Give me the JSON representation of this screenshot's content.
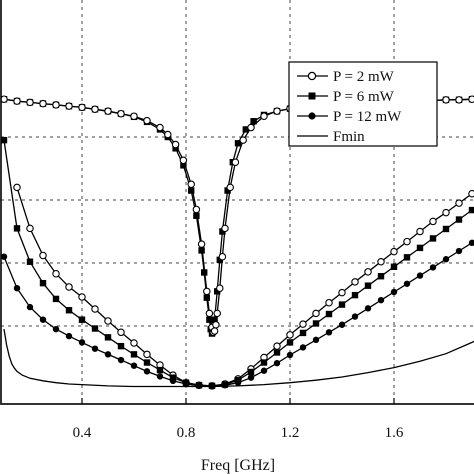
{
  "chart_data": {
    "type": "line",
    "xlabel": "Freq [GHz]",
    "ylabel": "",
    "title": "",
    "xlim": [
      0.1,
      2.0
    ],
    "ylim": [
      0,
      4.65
    ],
    "x_ticks": [
      0.4,
      0.8,
      1.2,
      1.6
    ],
    "x_tick_labels": [
      "0.4",
      "0.8",
      "1.2",
      "1.6"
    ],
    "y_grid": [
      1,
      2,
      3,
      4
    ],
    "grid": true,
    "legend_position": "top-right",
    "series": [
      {
        "name": "P = 2 mW",
        "marker": "open-circle",
        "x": [
          0.15,
          0.2,
          0.25,
          0.3,
          0.35,
          0.4,
          0.45,
          0.5,
          0.55,
          0.6,
          0.65,
          0.7,
          0.75,
          0.8,
          0.85,
          0.9,
          0.95,
          1.0,
          1.05,
          1.1,
          1.15,
          1.2,
          1.25,
          1.3,
          1.35,
          1.4,
          1.45,
          1.5,
          1.55,
          1.6,
          1.65,
          1.7,
          1.75,
          1.8,
          1.85,
          1.9,
          1.95,
          2.0
        ],
        "y": [
          3.2,
          2.55,
          2.12,
          1.83,
          1.62,
          1.46,
          1.27,
          1.08,
          0.9,
          0.73,
          0.55,
          0.38,
          0.22,
          0.1,
          0.06,
          0.05,
          0.08,
          0.16,
          0.32,
          0.5,
          0.68,
          0.86,
          1.03,
          1.2,
          1.37,
          1.53,
          1.7,
          1.86,
          2.02,
          2.18,
          2.34,
          2.5,
          2.66,
          2.8,
          2.95,
          3.1,
          3.25,
          3.4
        ]
      },
      {
        "name": "P = 6 mW",
        "marker": "filled-square",
        "x": [
          0.1,
          0.15,
          0.2,
          0.25,
          0.3,
          0.35,
          0.4,
          0.45,
          0.5,
          0.55,
          0.6,
          0.65,
          0.7,
          0.75,
          0.8,
          0.85,
          0.9,
          0.95,
          1.0,
          1.05,
          1.1,
          1.15,
          1.2,
          1.25,
          1.3,
          1.35,
          1.4,
          1.45,
          1.5,
          1.55,
          1.6,
          1.65,
          1.7,
          1.75,
          1.8,
          1.85,
          1.9,
          1.95,
          2.0
        ],
        "y": [
          3.95,
          2.55,
          2.02,
          1.68,
          1.43,
          1.25,
          1.1,
          0.96,
          0.82,
          0.68,
          0.55,
          0.42,
          0.3,
          0.18,
          0.1,
          0.06,
          0.05,
          0.07,
          0.14,
          0.27,
          0.42,
          0.58,
          0.74,
          0.89,
          1.04,
          1.19,
          1.34,
          1.49,
          1.64,
          1.79,
          1.94,
          2.09,
          2.24,
          2.39,
          2.54,
          2.69,
          2.84,
          2.99,
          3.14
        ]
      },
      {
        "name": "P = 12 mW",
        "marker": "filled-circle",
        "x": [
          0.1,
          0.15,
          0.2,
          0.25,
          0.3,
          0.35,
          0.4,
          0.45,
          0.5,
          0.55,
          0.6,
          0.65,
          0.7,
          0.75,
          0.8,
          0.85,
          0.9,
          0.95,
          1.0,
          1.05,
          1.1,
          1.15,
          1.2,
          1.25,
          1.3,
          1.35,
          1.4,
          1.45,
          1.5,
          1.55,
          1.6,
          1.65,
          1.7,
          1.75,
          1.8,
          1.85,
          1.9,
          1.95,
          2.0
        ],
        "y": [
          2.1,
          1.6,
          1.3,
          1.1,
          0.95,
          0.84,
          0.74,
          0.64,
          0.55,
          0.46,
          0.37,
          0.28,
          0.2,
          0.13,
          0.08,
          0.05,
          0.05,
          0.06,
          0.1,
          0.18,
          0.29,
          0.41,
          0.54,
          0.66,
          0.78,
          0.9,
          1.02,
          1.15,
          1.28,
          1.41,
          1.54,
          1.67,
          1.8,
          1.93,
          2.06,
          2.19,
          2.32,
          2.45,
          2.58
        ]
      },
      {
        "name": "Fmin",
        "marker": "none",
        "x": [
          0.1,
          0.11,
          0.12,
          0.13,
          0.14,
          0.15,
          0.17,
          0.2,
          0.25,
          0.3,
          0.35,
          0.4,
          0.5,
          0.6,
          0.7,
          0.8,
          0.9,
          1.0,
          1.1,
          1.2,
          1.3,
          1.4,
          1.5,
          1.6,
          1.7,
          1.8,
          1.9,
          2.0
        ],
        "y": [
          0.95,
          0.7,
          0.52,
          0.4,
          0.33,
          0.28,
          0.22,
          0.17,
          0.13,
          0.1,
          0.08,
          0.07,
          0.05,
          0.04,
          0.04,
          0.04,
          0.04,
          0.05,
          0.07,
          0.1,
          0.14,
          0.19,
          0.26,
          0.34,
          0.44,
          0.56,
          0.74,
          0.95
        ]
      },
      {
        "name": "",
        "marker": "filled-square",
        "x": [
          0.1,
          0.15,
          0.2,
          0.25,
          0.3,
          0.35,
          0.4,
          0.45,
          0.5,
          0.55,
          0.6,
          0.65,
          0.7,
          0.73,
          0.76,
          0.79,
          0.82,
          0.84,
          0.86,
          0.87,
          0.88,
          0.89,
          0.895,
          0.9,
          0.905,
          0.91,
          0.92,
          0.93,
          0.94,
          0.96,
          0.98,
          1.0,
          1.03,
          1.06,
          1.1,
          1.15,
          1.2,
          1.25,
          1.3,
          1.35,
          1.4,
          1.45,
          1.5,
          1.55,
          1.6,
          1.65,
          1.7,
          1.75,
          1.8,
          1.85,
          1.9,
          1.95,
          2.0
        ],
        "y": [
          4.6,
          4.57,
          4.55,
          4.53,
          4.51,
          4.49,
          4.47,
          4.44,
          4.41,
          4.37,
          4.32,
          4.24,
          4.12,
          4.0,
          3.82,
          3.55,
          3.15,
          2.75,
          2.2,
          1.85,
          1.45,
          1.1,
          0.95,
          0.88,
          0.93,
          1.1,
          1.55,
          2.05,
          2.5,
          3.15,
          3.6,
          3.9,
          4.12,
          4.25,
          4.35,
          4.41,
          4.45,
          4.48,
          4.5,
          4.52,
          4.53,
          4.54,
          4.55,
          4.56,
          4.57,
          4.57,
          4.58,
          4.58,
          4.59,
          4.59,
          4.6,
          4.6,
          4.6
        ]
      },
      {
        "name": "",
        "marker": "open-circle",
        "x": [
          0.1,
          0.15,
          0.2,
          0.25,
          0.3,
          0.35,
          0.4,
          0.45,
          0.5,
          0.55,
          0.6,
          0.65,
          0.7,
          0.73,
          0.76,
          0.79,
          0.82,
          0.84,
          0.86,
          0.88,
          0.89,
          0.9,
          0.905,
          0.91,
          0.915,
          0.92,
          0.93,
          0.94,
          0.95,
          0.97,
          0.99,
          1.02,
          1.05,
          1.1,
          1.15,
          1.2,
          1.25,
          1.3,
          1.35,
          1.4,
          1.45,
          1.5,
          1.55,
          1.6,
          1.65,
          1.7,
          1.75,
          1.8,
          1.85,
          1.9,
          1.95,
          2.0
        ],
        "y": [
          4.6,
          4.57,
          4.55,
          4.53,
          4.51,
          4.49,
          4.47,
          4.44,
          4.41,
          4.37,
          4.33,
          4.26,
          4.15,
          4.04,
          3.88,
          3.63,
          3.25,
          2.85,
          2.3,
          1.55,
          1.2,
          0.98,
          0.9,
          0.92,
          1.02,
          1.2,
          1.6,
          2.1,
          2.55,
          3.2,
          3.6,
          3.95,
          4.15,
          4.33,
          4.41,
          4.45,
          4.48,
          4.5,
          4.52,
          4.53,
          4.54,
          4.55,
          4.56,
          4.57,
          4.57,
          4.58,
          4.58,
          4.59,
          4.59,
          4.6,
          4.6,
          4.6
        ]
      }
    ]
  }
}
